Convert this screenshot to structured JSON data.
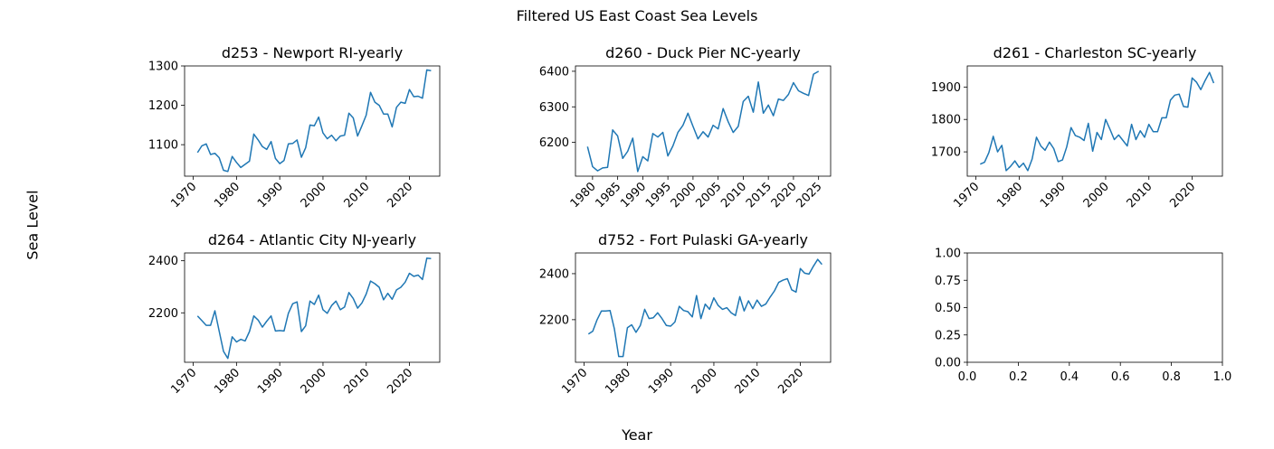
{
  "figure": {
    "title": "Filtered US East Coast Sea Levels",
    "xlabel": "Year",
    "ylabel": "Sea Level",
    "line_color": "#1f77b4"
  },
  "chart_data": [
    {
      "type": "line",
      "title": "d253 - Newport RI-yearly",
      "xlim": [
        1968,
        2027
      ],
      "ylim": [
        1020,
        1300
      ],
      "xticks": [
        1970,
        1980,
        1990,
        2000,
        2010,
        2020
      ],
      "yticks": [
        1100,
        1200,
        1300
      ],
      "x": [
        1971,
        1972,
        1973,
        1974,
        1975,
        1976,
        1977,
        1978,
        1979,
        1980,
        1981,
        1982,
        1983,
        1984,
        1985,
        1986,
        1987,
        1988,
        1989,
        1990,
        1991,
        1992,
        1993,
        1994,
        1995,
        1996,
        1997,
        1998,
        1999,
        2000,
        2001,
        2002,
        2003,
        2004,
        2005,
        2006,
        2007,
        2008,
        2009,
        2010,
        2011,
        2012,
        2013,
        2014,
        2015,
        2016,
        2017,
        2018,
        2019,
        2020,
        2021,
        2022,
        2023,
        2024,
        2025
      ],
      "y": [
        1080,
        1097,
        1102,
        1075,
        1078,
        1067,
        1035,
        1032,
        1070,
        1055,
        1042,
        1050,
        1058,
        1127,
        1112,
        1095,
        1088,
        1108,
        1065,
        1052,
        1060,
        1102,
        1103,
        1112,
        1068,
        1092,
        1150,
        1148,
        1170,
        1130,
        1115,
        1124,
        1110,
        1122,
        1124,
        1180,
        1168,
        1122,
        1148,
        1175,
        1233,
        1208,
        1200,
        1178,
        1178,
        1145,
        1195,
        1208,
        1205,
        1240,
        1222,
        1223,
        1218,
        1290,
        1288
      ]
    },
    {
      "type": "line",
      "title": "d260 - Duck Pier NC-yearly",
      "xlim": [
        1976.6,
        2027.4
      ],
      "ylim": [
        6105,
        6415
      ],
      "xticks": [
        1980,
        1985,
        1990,
        1995,
        2000,
        2005,
        2010,
        2015,
        2020,
        2025
      ],
      "yticks": [
        6200,
        6300,
        6400
      ],
      "x": [
        1979,
        1980,
        1981,
        1982,
        1983,
        1984,
        1985,
        1986,
        1987,
        1988,
        1989,
        1990,
        1991,
        1992,
        1993,
        1994,
        1995,
        1996,
        1997,
        1998,
        1999,
        2000,
        2001,
        2002,
        2003,
        2004,
        2005,
        2006,
        2007,
        2008,
        2009,
        2010,
        2011,
        2012,
        2013,
        2014,
        2015,
        2016,
        2017,
        2018,
        2019,
        2020,
        2021,
        2022,
        2023,
        2024,
        2025
      ],
      "y": [
        6188,
        6132,
        6120,
        6128,
        6130,
        6235,
        6218,
        6155,
        6175,
        6212,
        6118,
        6160,
        6148,
        6225,
        6215,
        6228,
        6162,
        6190,
        6228,
        6248,
        6282,
        6245,
        6210,
        6230,
        6215,
        6248,
        6238,
        6295,
        6258,
        6228,
        6245,
        6315,
        6330,
        6285,
        6370,
        6282,
        6305,
        6275,
        6322,
        6318,
        6335,
        6368,
        6345,
        6338,
        6332,
        6392,
        6400
      ]
    },
    {
      "type": "line",
      "title": "d261 - Charleston SC-yearly",
      "xlim": [
        1968,
        2027
      ],
      "ylim": [
        1625,
        1965
      ],
      "xticks": [
        1970,
        1980,
        1990,
        2000,
        2010,
        2020
      ],
      "yticks": [
        1700,
        1800,
        1900
      ],
      "x": [
        1971,
        1972,
        1973,
        1974,
        1975,
        1976,
        1977,
        1978,
        1979,
        1980,
        1981,
        1982,
        1983,
        1984,
        1985,
        1986,
        1987,
        1988,
        1989,
        1990,
        1991,
        1992,
        1993,
        1994,
        1995,
        1996,
        1997,
        1998,
        1999,
        2000,
        2001,
        2002,
        2003,
        2004,
        2005,
        2006,
        2007,
        2008,
        2009,
        2010,
        2011,
        2012,
        2013,
        2014,
        2015,
        2016,
        2017,
        2018,
        2019,
        2020,
        2021,
        2022,
        2023,
        2024,
        2025
      ],
      "y": [
        1662,
        1668,
        1698,
        1748,
        1700,
        1720,
        1642,
        1655,
        1672,
        1652,
        1665,
        1642,
        1678,
        1745,
        1718,
        1705,
        1730,
        1710,
        1670,
        1675,
        1715,
        1775,
        1750,
        1745,
        1735,
        1788,
        1702,
        1760,
        1738,
        1800,
        1770,
        1738,
        1752,
        1735,
        1718,
        1785,
        1738,
        1765,
        1745,
        1785,
        1762,
        1762,
        1805,
        1805,
        1860,
        1875,
        1878,
        1840,
        1838,
        1928,
        1915,
        1892,
        1920,
        1945,
        1912
      ]
    },
    {
      "type": "line",
      "title": "d264 - Atlantic City NJ-yearly",
      "xlim": [
        1968,
        2027
      ],
      "ylim": [
        2010,
        2430
      ],
      "xticks": [
        1970,
        1980,
        1990,
        2000,
        2010,
        2020
      ],
      "yticks": [
        2200,
        2400
      ],
      "x": [
        1971,
        1972,
        1973,
        1974,
        1975,
        1976,
        1977,
        1978,
        1979,
        1980,
        1981,
        1982,
        1983,
        1984,
        1985,
        1986,
        1987,
        1988,
        1989,
        1990,
        1991,
        1992,
        1993,
        1994,
        1995,
        1996,
        1997,
        1998,
        1999,
        2000,
        2001,
        2002,
        2003,
        2004,
        2005,
        2006,
        2007,
        2008,
        2009,
        2010,
        2011,
        2012,
        2013,
        2014,
        2015,
        2016,
        2017,
        2018,
        2019,
        2020,
        2021,
        2022,
        2023,
        2024,
        2025
      ],
      "y": [
        2188,
        2170,
        2152,
        2152,
        2208,
        2130,
        2052,
        2025,
        2108,
        2088,
        2098,
        2092,
        2128,
        2188,
        2172,
        2145,
        2168,
        2188,
        2130,
        2132,
        2130,
        2198,
        2235,
        2242,
        2128,
        2150,
        2245,
        2232,
        2268,
        2212,
        2198,
        2228,
        2245,
        2212,
        2222,
        2278,
        2255,
        2218,
        2238,
        2272,
        2322,
        2312,
        2298,
        2250,
        2275,
        2252,
        2288,
        2298,
        2318,
        2352,
        2340,
        2345,
        2328,
        2410,
        2408
      ]
    },
    {
      "type": "line",
      "title": "d752 - Fort Pulaski GA-yearly",
      "xlim": [
        1968,
        2027
      ],
      "ylim": [
        2015,
        2490
      ],
      "xticks": [
        1970,
        1980,
        1990,
        2000,
        2010,
        2020
      ],
      "yticks": [
        2200,
        2400
      ],
      "x": [
        1971,
        1972,
        1973,
        1974,
        1975,
        1976,
        1977,
        1978,
        1979,
        1980,
        1981,
        1982,
        1983,
        1984,
        1985,
        1986,
        1987,
        1988,
        1989,
        1990,
        1991,
        1992,
        1993,
        1994,
        1995,
        1996,
        1997,
        1998,
        1999,
        2000,
        2001,
        2002,
        2003,
        2004,
        2005,
        2006,
        2007,
        2008,
        2009,
        2010,
        2011,
        2012,
        2013,
        2014,
        2015,
        2016,
        2017,
        2018,
        2019,
        2020,
        2021,
        2022,
        2023,
        2024,
        2025
      ],
      "y": [
        2138,
        2150,
        2200,
        2238,
        2238,
        2240,
        2160,
        2040,
        2040,
        2165,
        2178,
        2145,
        2175,
        2245,
        2205,
        2208,
        2230,
        2205,
        2175,
        2172,
        2190,
        2258,
        2240,
        2235,
        2212,
        2305,
        2205,
        2268,
        2245,
        2295,
        2262,
        2245,
        2252,
        2230,
        2218,
        2300,
        2238,
        2282,
        2248,
        2285,
        2258,
        2268,
        2298,
        2325,
        2362,
        2372,
        2378,
        2330,
        2320,
        2422,
        2402,
        2398,
        2432,
        2462,
        2440
      ]
    },
    {
      "type": "line",
      "title": "",
      "xlim": [
        0,
        1
      ],
      "ylim": [
        0,
        1
      ],
      "xticks": [
        "0.0",
        "0.2",
        "0.4",
        "0.6",
        "0.8",
        "1.0"
      ],
      "yticks": [
        "0.00",
        "0.25",
        "0.50",
        "0.75",
        "1.00"
      ],
      "x": [],
      "y": []
    }
  ]
}
